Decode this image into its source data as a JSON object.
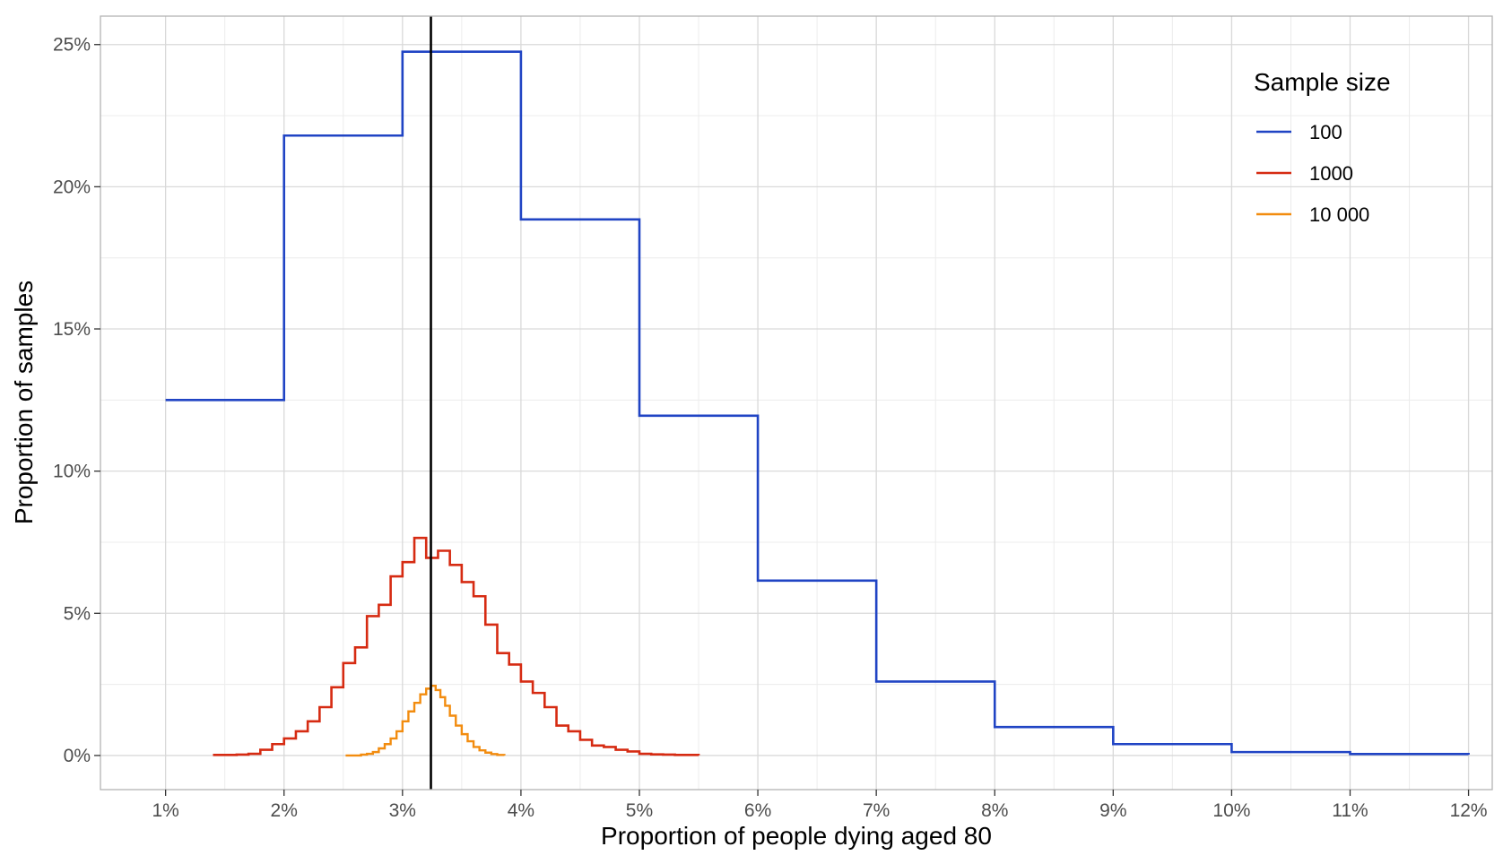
{
  "chart_data": {
    "type": "line",
    "step": true,
    "xlabel": "Proportion of people dying aged 80",
    "ylabel": "Proportion of samples",
    "xlim": [
      0.45,
      12.2
    ],
    "ylim": [
      -1.2,
      26.0
    ],
    "x_ticks": [
      1,
      2,
      3,
      4,
      5,
      6,
      7,
      8,
      9,
      10,
      11,
      12
    ],
    "x_tick_labels": [
      "1%",
      "2%",
      "3%",
      "4%",
      "5%",
      "6%",
      "7%",
      "8%",
      "9%",
      "10%",
      "11%",
      "12%"
    ],
    "y_ticks": [
      0,
      5,
      10,
      15,
      20,
      25
    ],
    "y_tick_labels": [
      "0%",
      "5%",
      "10%",
      "15%",
      "20%",
      "25%"
    ],
    "grid": true,
    "reference_line": {
      "x": 3.24,
      "color": "#000000"
    },
    "legend": {
      "title": "Sample size",
      "position": "top-right"
    },
    "series": [
      {
        "name": "100",
        "color": "#2044c4",
        "x": [
          1,
          2,
          3,
          4,
          5,
          6,
          7,
          8,
          9,
          10,
          11,
          12
        ],
        "y": [
          12.5,
          21.8,
          24.75,
          18.85,
          11.95,
          6.15,
          2.6,
          1.0,
          0.4,
          0.12,
          0.05,
          0.03
        ]
      },
      {
        "name": "1000",
        "color": "#d62b12",
        "x": [
          1.4,
          1.5,
          1.6,
          1.7,
          1.8,
          1.9,
          2.0,
          2.1,
          2.2,
          2.3,
          2.4,
          2.5,
          2.6,
          2.7,
          2.8,
          2.9,
          3.0,
          3.1,
          3.2,
          3.3,
          3.4,
          3.5,
          3.6,
          3.7,
          3.8,
          3.9,
          4.0,
          4.1,
          4.2,
          4.3,
          4.4,
          4.5,
          4.6,
          4.7,
          4.8,
          4.9,
          5.0,
          5.1,
          5.2,
          5.3,
          5.4,
          5.5
        ],
        "y": [
          0.02,
          0.02,
          0.03,
          0.06,
          0.2,
          0.4,
          0.6,
          0.85,
          1.2,
          1.7,
          2.4,
          3.25,
          3.8,
          4.9,
          5.3,
          6.3,
          6.8,
          7.65,
          6.95,
          7.2,
          6.7,
          6.1,
          5.6,
          4.6,
          3.6,
          3.2,
          2.6,
          2.2,
          1.7,
          1.05,
          0.85,
          0.55,
          0.35,
          0.3,
          0.2,
          0.14,
          0.06,
          0.04,
          0.03,
          0.02,
          0.02,
          0.0
        ]
      },
      {
        "name": "10 000",
        "color": "#f28c0f",
        "x": [
          2.52,
          2.6,
          2.65,
          2.7,
          2.75,
          2.8,
          2.85,
          2.9,
          2.95,
          3.0,
          3.05,
          3.1,
          3.15,
          3.2,
          3.24,
          3.28,
          3.32,
          3.36,
          3.4,
          3.45,
          3.5,
          3.55,
          3.6,
          3.65,
          3.7,
          3.75,
          3.8,
          3.86
        ],
        "y": [
          0.0,
          0.0,
          0.03,
          0.06,
          0.12,
          0.25,
          0.4,
          0.6,
          0.85,
          1.2,
          1.55,
          1.85,
          2.15,
          2.35,
          2.45,
          2.3,
          2.05,
          1.75,
          1.4,
          1.05,
          0.75,
          0.5,
          0.3,
          0.18,
          0.1,
          0.05,
          0.02,
          0.0
        ]
      }
    ]
  }
}
